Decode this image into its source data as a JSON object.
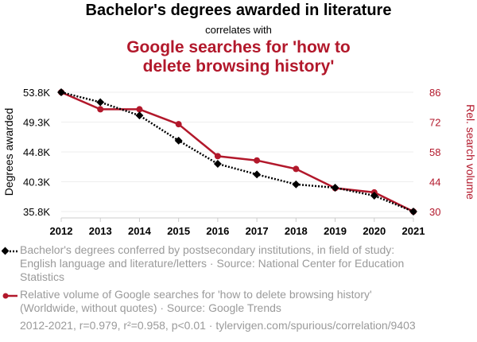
{
  "header": {
    "title": "Bachelor's degrees awarded in literature",
    "subtitle": "correlates with",
    "title2": "Google searches for 'how to delete browsing history'"
  },
  "chart_data": {
    "type": "line",
    "x": [
      2012,
      2013,
      2014,
      2015,
      2016,
      2017,
      2018,
      2019,
      2020,
      2021
    ],
    "ylabel_left": "Degrees awarded",
    "ylabel_right": "Rel. search volume",
    "left_ticks": [
      "53.8K",
      "49.3K",
      "44.8K",
      "40.3K",
      "35.8K"
    ],
    "right_ticks": [
      "86",
      "72",
      "58",
      "44",
      "30"
    ],
    "ylim_left": [
      35800,
      53800
    ],
    "ylim_right": [
      30,
      86
    ],
    "series": [
      {
        "name": "Bachelor's degrees conferred by postsecondary institutions, in field of study: English language and literature/letters · Source: National Center for Education Statistics",
        "axis": "left",
        "color": "#000000",
        "style": "dotted",
        "marker": "diamond",
        "values": [
          53800,
          52300,
          50300,
          46500,
          43000,
          41400,
          39900,
          39400,
          38200,
          35800
        ]
      },
      {
        "name": "Relative volume of Google searches for 'how to delete browsing history' (Worldwide, without quotes) · Source: Google Trends",
        "axis": "right",
        "color": "#b2182b",
        "style": "solid",
        "marker": "circle",
        "values": [
          86,
          78,
          78,
          71,
          56,
          54,
          50,
          41,
          39,
          30
        ]
      }
    ],
    "grid": true,
    "legend_position": "bottom"
  },
  "footer": {
    "stats": "2012-2021, r=0.979, r²=0.958, p<0.01 · tylervigen.com/spurious/correlation/9403"
  }
}
